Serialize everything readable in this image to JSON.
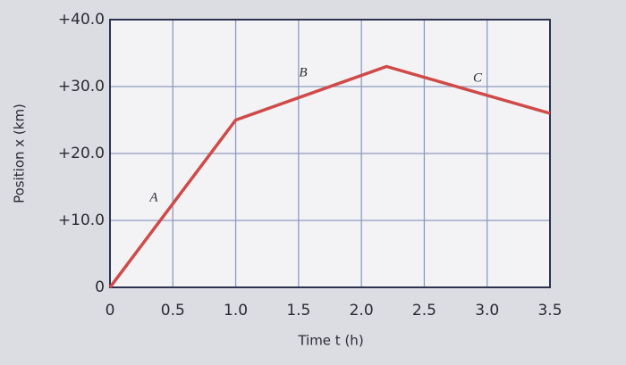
{
  "chart_data": {
    "type": "line",
    "x_label": "Time t (h)",
    "y_label": "Position x (km)",
    "x": [
      0,
      1.0,
      2.2,
      3.5
    ],
    "series": [
      {
        "color": "#cf4a48",
        "values": [
          0,
          25,
          33,
          26
        ]
      }
    ],
    "annotations": [
      "A",
      "B",
      "C"
    ],
    "xlim": [
      0,
      3.5
    ],
    "xticks": [
      0,
      0.5,
      {
        "value": 1,
        "label": "1.0"
      },
      1.5,
      {
        "value": 2,
        "label": "2.0"
      },
      2.5,
      {
        "value": 3,
        "label": "3.0"
      },
      3.5
    ],
    "ylim": [
      0,
      40
    ],
    "yticks": [
      0,
      {
        "value": 10,
        "label": "+10.0"
      },
      {
        "value": 20,
        "label": "+20.0"
      },
      {
        "value": 30,
        "label": "+30.0"
      },
      {
        "value": 40,
        "label": "+40.0"
      }
    ],
    "grid": true
  }
}
